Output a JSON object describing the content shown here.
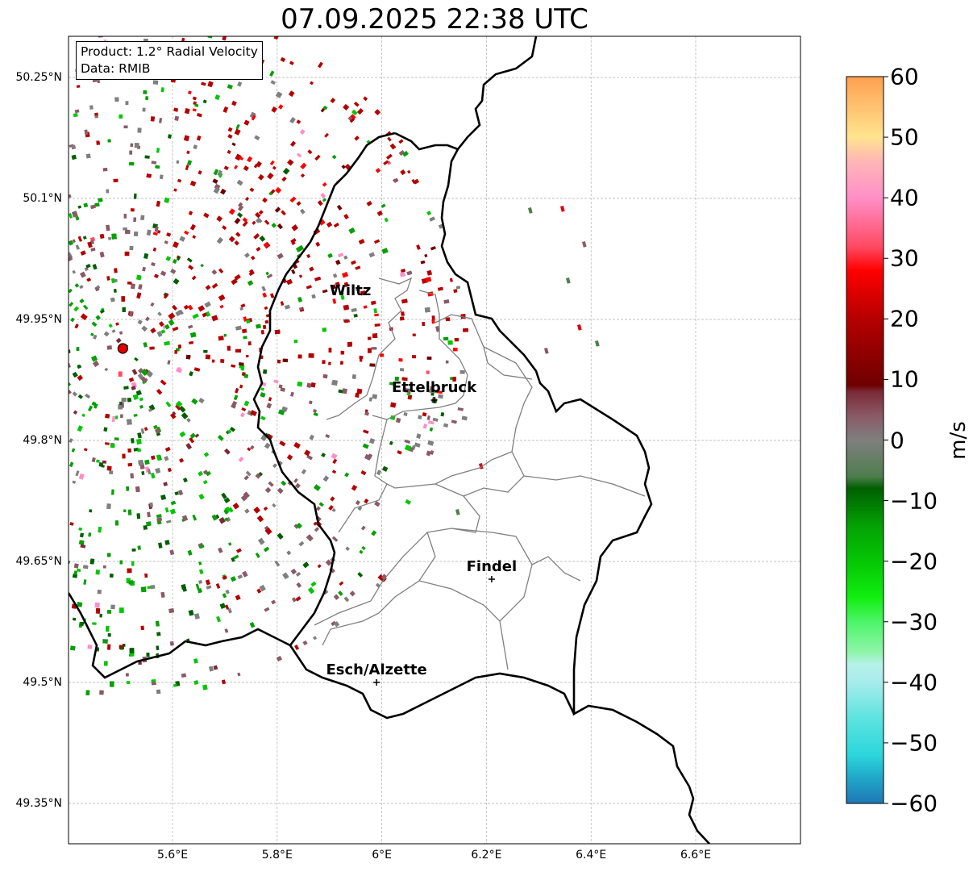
{
  "title": "07.09.2025 22:38 UTC",
  "info": {
    "product": "Product: 1.2° Radial Velocity",
    "data_source": "Data: RMIB"
  },
  "lat_ticks": [
    {
      "value": 50.25,
      "label": "50.25°N"
    },
    {
      "value": 50.1,
      "label": "50.1°N"
    },
    {
      "value": 49.95,
      "label": "49.95°N"
    },
    {
      "value": 49.8,
      "label": "49.8°N"
    },
    {
      "value": 49.65,
      "label": "49.65°N"
    },
    {
      "value": 49.5,
      "label": "49.5°N"
    },
    {
      "value": 49.35,
      "label": "49.35°N"
    }
  ],
  "lon_ticks": [
    {
      "value": 5.6,
      "label": "5.6°E"
    },
    {
      "value": 5.8,
      "label": "5.8°E"
    },
    {
      "value": 6.0,
      "label": "6°E"
    },
    {
      "value": 6.2,
      "label": "6.2°E"
    },
    {
      "value": 6.4,
      "label": "6.4°E"
    },
    {
      "value": 6.6,
      "label": "6.6°E"
    }
  ],
  "places": [
    {
      "name": "Wiltz",
      "lon": 5.94,
      "lat": 49.97
    },
    {
      "name": "Ettelbruck",
      "lon": 6.1,
      "lat": 49.85
    },
    {
      "name": "Findel",
      "lon": 6.21,
      "lat": 49.628
    },
    {
      "name": "Esch/Alzette",
      "lon": 5.99,
      "lat": 49.5
    }
  ],
  "radar_site": {
    "lon": 5.505,
    "lat": 49.914
  },
  "colorbar": {
    "label": "m/s",
    "ticks": [
      {
        "value": 60,
        "label": "60"
      },
      {
        "value": 50,
        "label": "50"
      },
      {
        "value": 40,
        "label": "40"
      },
      {
        "value": 30,
        "label": "30"
      },
      {
        "value": 20,
        "label": "20"
      },
      {
        "value": 10,
        "label": "10"
      },
      {
        "value": 0,
        "label": "0"
      },
      {
        "value": -10,
        "label": "−10"
      },
      {
        "value": -20,
        "label": "−20"
      },
      {
        "value": -30,
        "label": "−30"
      },
      {
        "value": -40,
        "label": "−40"
      },
      {
        "value": -50,
        "label": "−50"
      },
      {
        "value": -60,
        "label": "−60"
      }
    ],
    "stops": [
      {
        "v": -60,
        "c": "#1f77b4"
      },
      {
        "v": -56,
        "c": "#1fa5c8"
      },
      {
        "v": -52,
        "c": "#2bd6dc"
      },
      {
        "v": -46,
        "c": "#5ce3e0"
      },
      {
        "v": -40,
        "c": "#a7ecec"
      },
      {
        "v": -37,
        "c": "#b6f2ea"
      },
      {
        "v": -35,
        "c": "#8ff5a8"
      },
      {
        "v": -30,
        "c": "#4cf56a"
      },
      {
        "v": -26,
        "c": "#10ee10"
      },
      {
        "v": -20,
        "c": "#05c605"
      },
      {
        "v": -14,
        "c": "#04a004"
      },
      {
        "v": -8,
        "c": "#005f00"
      },
      {
        "v": -6,
        "c": "#4e7d4e"
      },
      {
        "v": 0,
        "c": "#7f7f7f"
      },
      {
        "v": 4,
        "c": "#8a5a66"
      },
      {
        "v": 8,
        "c": "#7a2a36"
      },
      {
        "v": 9,
        "c": "#6e0000"
      },
      {
        "v": 20,
        "c": "#b50000"
      },
      {
        "v": 28,
        "c": "#ff0000"
      },
      {
        "v": 32,
        "c": "#ff4b64"
      },
      {
        "v": 40,
        "c": "#ff8fc8"
      },
      {
        "v": 46,
        "c": "#ffb6b6"
      },
      {
        "v": 50,
        "c": "#ffe48f"
      },
      {
        "v": 60,
        "c": "#ff9f50"
      }
    ]
  },
  "colors": {
    "border": "#000000",
    "canton": "#808080",
    "grid": "#b0b0b0",
    "radar_dot": "#e00000"
  }
}
